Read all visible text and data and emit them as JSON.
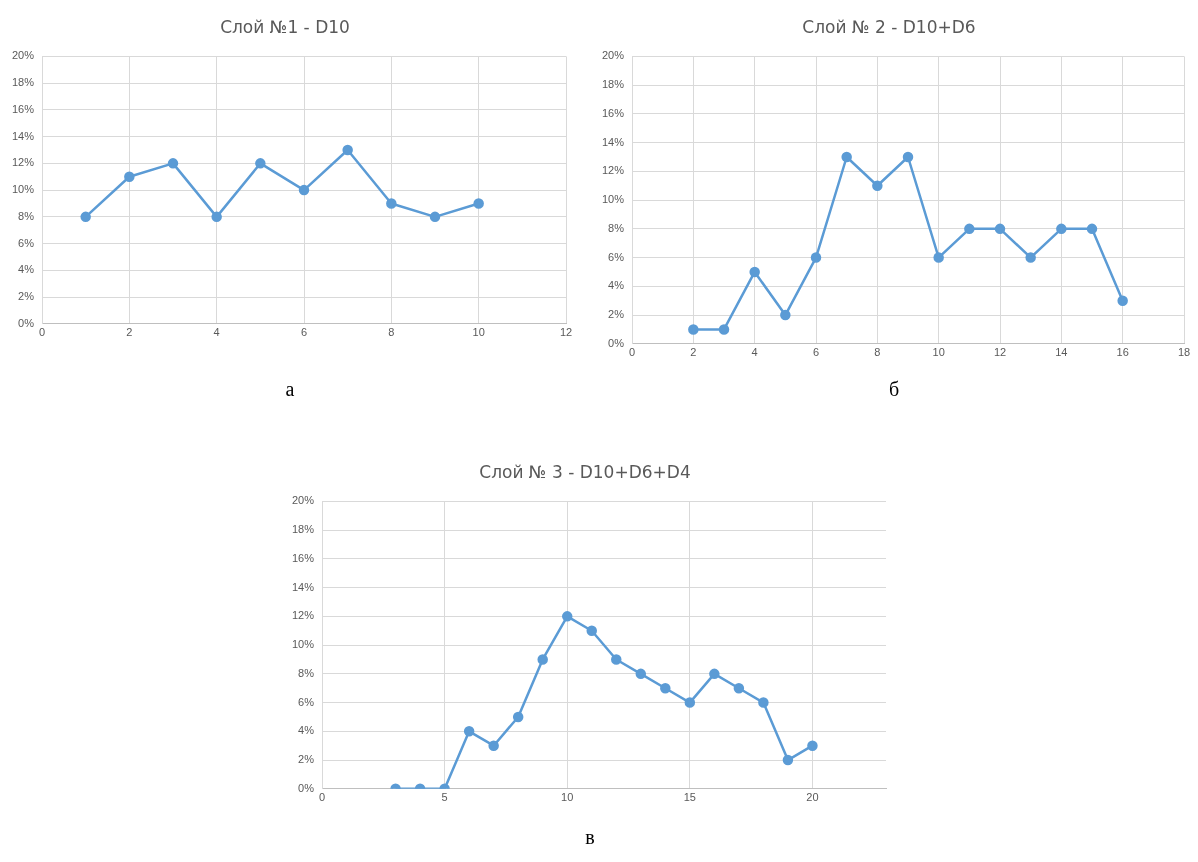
{
  "chart_data": [
    {
      "type": "line",
      "title": "Слой №1 - D10",
      "x": [
        1,
        2,
        3,
        4,
        5,
        6,
        7,
        8,
        9,
        10
      ],
      "series": [
        {
          "color": "#5b9bd5",
          "values": [
            8,
            11,
            12,
            8,
            12,
            10,
            13,
            9,
            8,
            9
          ]
        }
      ],
      "xlim": [
        0,
        12
      ],
      "xticks": [
        0,
        2,
        4,
        6,
        8,
        10,
        12
      ],
      "ylim": [
        0,
        20
      ],
      "yticks": [
        {
          "value": 0,
          "label": "0%"
        },
        {
          "value": 2,
          "label": "2%"
        },
        {
          "value": 4,
          "label": "4%"
        },
        {
          "value": 6,
          "label": "6%"
        },
        {
          "value": 8,
          "label": "8%"
        },
        {
          "value": 10,
          "label": "10%"
        },
        {
          "value": 12,
          "label": "12%"
        },
        {
          "value": 14,
          "label": "14%"
        },
        {
          "value": 16,
          "label": "16%"
        },
        {
          "value": 18,
          "label": "18%"
        },
        {
          "value": 20,
          "label": "20%"
        }
      ],
      "grid": true,
      "marker": "circle",
      "legend": false,
      "annotations": [
        "а"
      ]
    },
    {
      "type": "line",
      "title": "Слой № 2 - D10+D6",
      "x": [
        2,
        3,
        4,
        5,
        6,
        7,
        8,
        9,
        10,
        11,
        12,
        13,
        14,
        15,
        16
      ],
      "series": [
        {
          "color": "#5b9bd5",
          "values": [
            1,
            1,
            5,
            2,
            6,
            13,
            11,
            13,
            6,
            8,
            8,
            6,
            8,
            8,
            3
          ]
        }
      ],
      "xlim": [
        0,
        18
      ],
      "xticks": [
        0,
        2,
        4,
        6,
        8,
        10,
        12,
        14,
        16,
        18
      ],
      "ylim": [
        0,
        20
      ],
      "yticks": [
        {
          "value": 0,
          "label": "0%"
        },
        {
          "value": 2,
          "label": "2%"
        },
        {
          "value": 4,
          "label": "4%"
        },
        {
          "value": 6,
          "label": "6%"
        },
        {
          "value": 8,
          "label": "8%"
        },
        {
          "value": 10,
          "label": "10%"
        },
        {
          "value": 12,
          "label": "12%"
        },
        {
          "value": 14,
          "label": "14%"
        },
        {
          "value": 16,
          "label": "16%"
        },
        {
          "value": 18,
          "label": "18%"
        },
        {
          "value": 20,
          "label": "20%"
        }
      ],
      "grid": true,
      "marker": "circle",
      "legend": false,
      "annotations": [
        "б"
      ]
    },
    {
      "type": "line",
      "title": "Слой № 3 - D10+D6+D4",
      "x": [
        3,
        4,
        5,
        6,
        7,
        8,
        9,
        10,
        11,
        12,
        13,
        14,
        15,
        16,
        17,
        18,
        19,
        20
      ],
      "series": [
        {
          "color": "#5b9bd5",
          "values": [
            0,
            0,
            0,
            4,
            3,
            5,
            9,
            12,
            11,
            9,
            8,
            7,
            6,
            8,
            7,
            6,
            2,
            3
          ]
        }
      ],
      "xlim": [
        0,
        23
      ],
      "xticks": [
        0,
        5,
        10,
        15,
        20
      ],
      "ylim": [
        0,
        20
      ],
      "yticks": [
        {
          "value": 0,
          "label": "0%"
        },
        {
          "value": 2,
          "label": "2%"
        },
        {
          "value": 4,
          "label": "4%"
        },
        {
          "value": 6,
          "label": "6%"
        },
        {
          "value": 8,
          "label": "8%"
        },
        {
          "value": 10,
          "label": "10%"
        },
        {
          "value": 12,
          "label": "12%"
        },
        {
          "value": 14,
          "label": "14%"
        },
        {
          "value": 16,
          "label": "16%"
        },
        {
          "value": 18,
          "label": "18%"
        },
        {
          "value": 20,
          "label": "20%"
        }
      ],
      "grid": true,
      "marker": "circle",
      "legend": false,
      "annotations": [
        "в"
      ]
    }
  ]
}
